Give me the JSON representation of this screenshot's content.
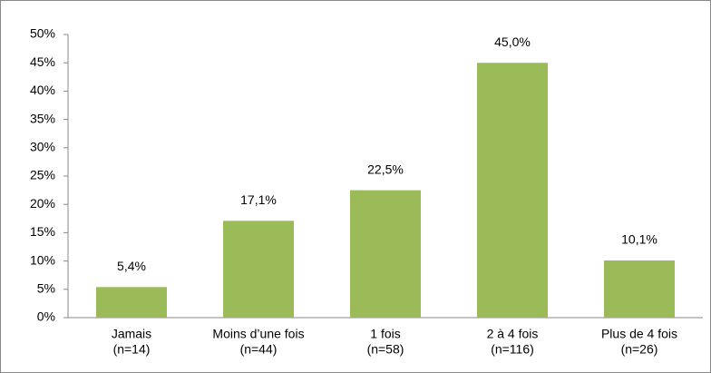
{
  "chart_data": {
    "type": "bar",
    "categories": [
      [
        "Jamais",
        "(n=14)"
      ],
      [
        "Moins d’une fois",
        "(n=44)"
      ],
      [
        "1 fois",
        "(n=58)"
      ],
      [
        "2 à 4 fois",
        "(n=116)"
      ],
      [
        "Plus de 4 fois",
        "(n=26)"
      ]
    ],
    "values": [
      5.4,
      17.1,
      22.5,
      45.0,
      10.1
    ],
    "value_labels": [
      "5,4%",
      "17,1%",
      "22,5%",
      "45,0%",
      "10,1%"
    ],
    "color": "#9bbb59",
    "ylim": [
      0,
      50
    ],
    "yticks": [
      {
        "value": 0,
        "label": "0%"
      },
      {
        "value": 5,
        "label": "5%"
      },
      {
        "value": 10,
        "label": "10%"
      },
      {
        "value": 15,
        "label": "15%"
      },
      {
        "value": 20,
        "label": "20%"
      },
      {
        "value": 25,
        "label": "25%"
      },
      {
        "value": 30,
        "label": "30%"
      },
      {
        "value": 35,
        "label": "35%"
      },
      {
        "value": 40,
        "label": "40%"
      },
      {
        "value": 45,
        "label": "45%"
      },
      {
        "value": 50,
        "label": "50%"
      }
    ],
    "grid": false
  }
}
